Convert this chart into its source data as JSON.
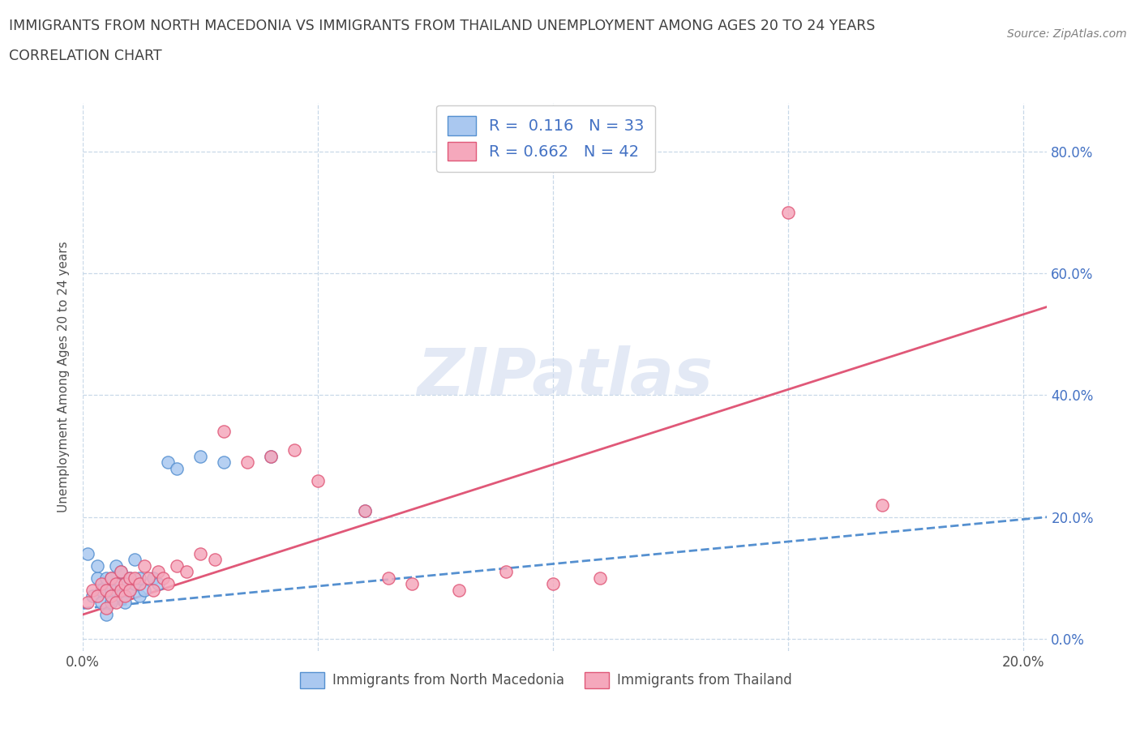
{
  "title_line1": "IMMIGRANTS FROM NORTH MACEDONIA VS IMMIGRANTS FROM THAILAND UNEMPLOYMENT AMONG AGES 20 TO 24 YEARS",
  "title_line2": "CORRELATION CHART",
  "source_text": "Source: ZipAtlas.com",
  "ylabel": "Unemployment Among Ages 20 to 24 years",
  "xlim": [
    0.0,
    0.205
  ],
  "ylim": [
    -0.02,
    0.88
  ],
  "yticks": [
    0.0,
    0.2,
    0.4,
    0.6,
    0.8
  ],
  "ytick_labels_right": [
    "0.0%",
    "20.0%",
    "40.0%",
    "60.0%",
    "80.0%"
  ],
  "xticks": [
    0.0,
    0.05,
    0.1,
    0.15,
    0.2
  ],
  "xtick_labels": [
    "0.0%",
    "",
    "",
    "",
    "20.0%"
  ],
  "watermark": "ZIPatlas",
  "series1_label": "Immigrants from North Macedonia",
  "series2_label": "Immigrants from Thailand",
  "series1_R": 0.116,
  "series1_N": 33,
  "series2_R": 0.662,
  "series2_N": 42,
  "series1_color": "#aac8f0",
  "series2_color": "#f5a8bc",
  "series1_line_color": "#5590d0",
  "series2_line_color": "#e05878",
  "legend_R_color": "#4472c4",
  "title_color": "#404040",
  "grid_color": "#c8d8e8",
  "series1_x": [
    0.001,
    0.002,
    0.003,
    0.003,
    0.004,
    0.004,
    0.005,
    0.005,
    0.006,
    0.006,
    0.006,
    0.007,
    0.007,
    0.008,
    0.008,
    0.008,
    0.009,
    0.009,
    0.01,
    0.01,
    0.011,
    0.011,
    0.012,
    0.012,
    0.013,
    0.015,
    0.016,
    0.018,
    0.02,
    0.025,
    0.03,
    0.04,
    0.06
  ],
  "series1_y": [
    0.14,
    0.07,
    0.1,
    0.12,
    0.08,
    0.06,
    0.1,
    0.04,
    0.08,
    0.06,
    0.1,
    0.08,
    0.12,
    0.07,
    0.09,
    0.11,
    0.06,
    0.09,
    0.1,
    0.08,
    0.13,
    0.09,
    0.07,
    0.1,
    0.08,
    0.1,
    0.09,
    0.29,
    0.28,
    0.3,
    0.29,
    0.3,
    0.21
  ],
  "series2_x": [
    0.001,
    0.002,
    0.003,
    0.004,
    0.005,
    0.005,
    0.006,
    0.006,
    0.007,
    0.007,
    0.008,
    0.008,
    0.009,
    0.009,
    0.01,
    0.01,
    0.011,
    0.012,
    0.013,
    0.014,
    0.015,
    0.016,
    0.017,
    0.018,
    0.02,
    0.022,
    0.025,
    0.028,
    0.03,
    0.035,
    0.04,
    0.045,
    0.05,
    0.06,
    0.065,
    0.07,
    0.08,
    0.09,
    0.1,
    0.11,
    0.15,
    0.17
  ],
  "series2_y": [
    0.06,
    0.08,
    0.07,
    0.09,
    0.05,
    0.08,
    0.07,
    0.1,
    0.06,
    0.09,
    0.08,
    0.11,
    0.07,
    0.09,
    0.1,
    0.08,
    0.1,
    0.09,
    0.12,
    0.1,
    0.08,
    0.11,
    0.1,
    0.09,
    0.12,
    0.11,
    0.14,
    0.13,
    0.34,
    0.29,
    0.3,
    0.31,
    0.26,
    0.21,
    0.1,
    0.09,
    0.08,
    0.11,
    0.09,
    0.1,
    0.7,
    0.22
  ],
  "trendline1_x0": 0.0,
  "trendline1_y0": 0.05,
  "trendline1_x1": 0.205,
  "trendline1_y1": 0.2,
  "trendline2_x0": 0.0,
  "trendline2_y0": 0.04,
  "trendline2_x1": 0.205,
  "trendline2_y1": 0.545
}
